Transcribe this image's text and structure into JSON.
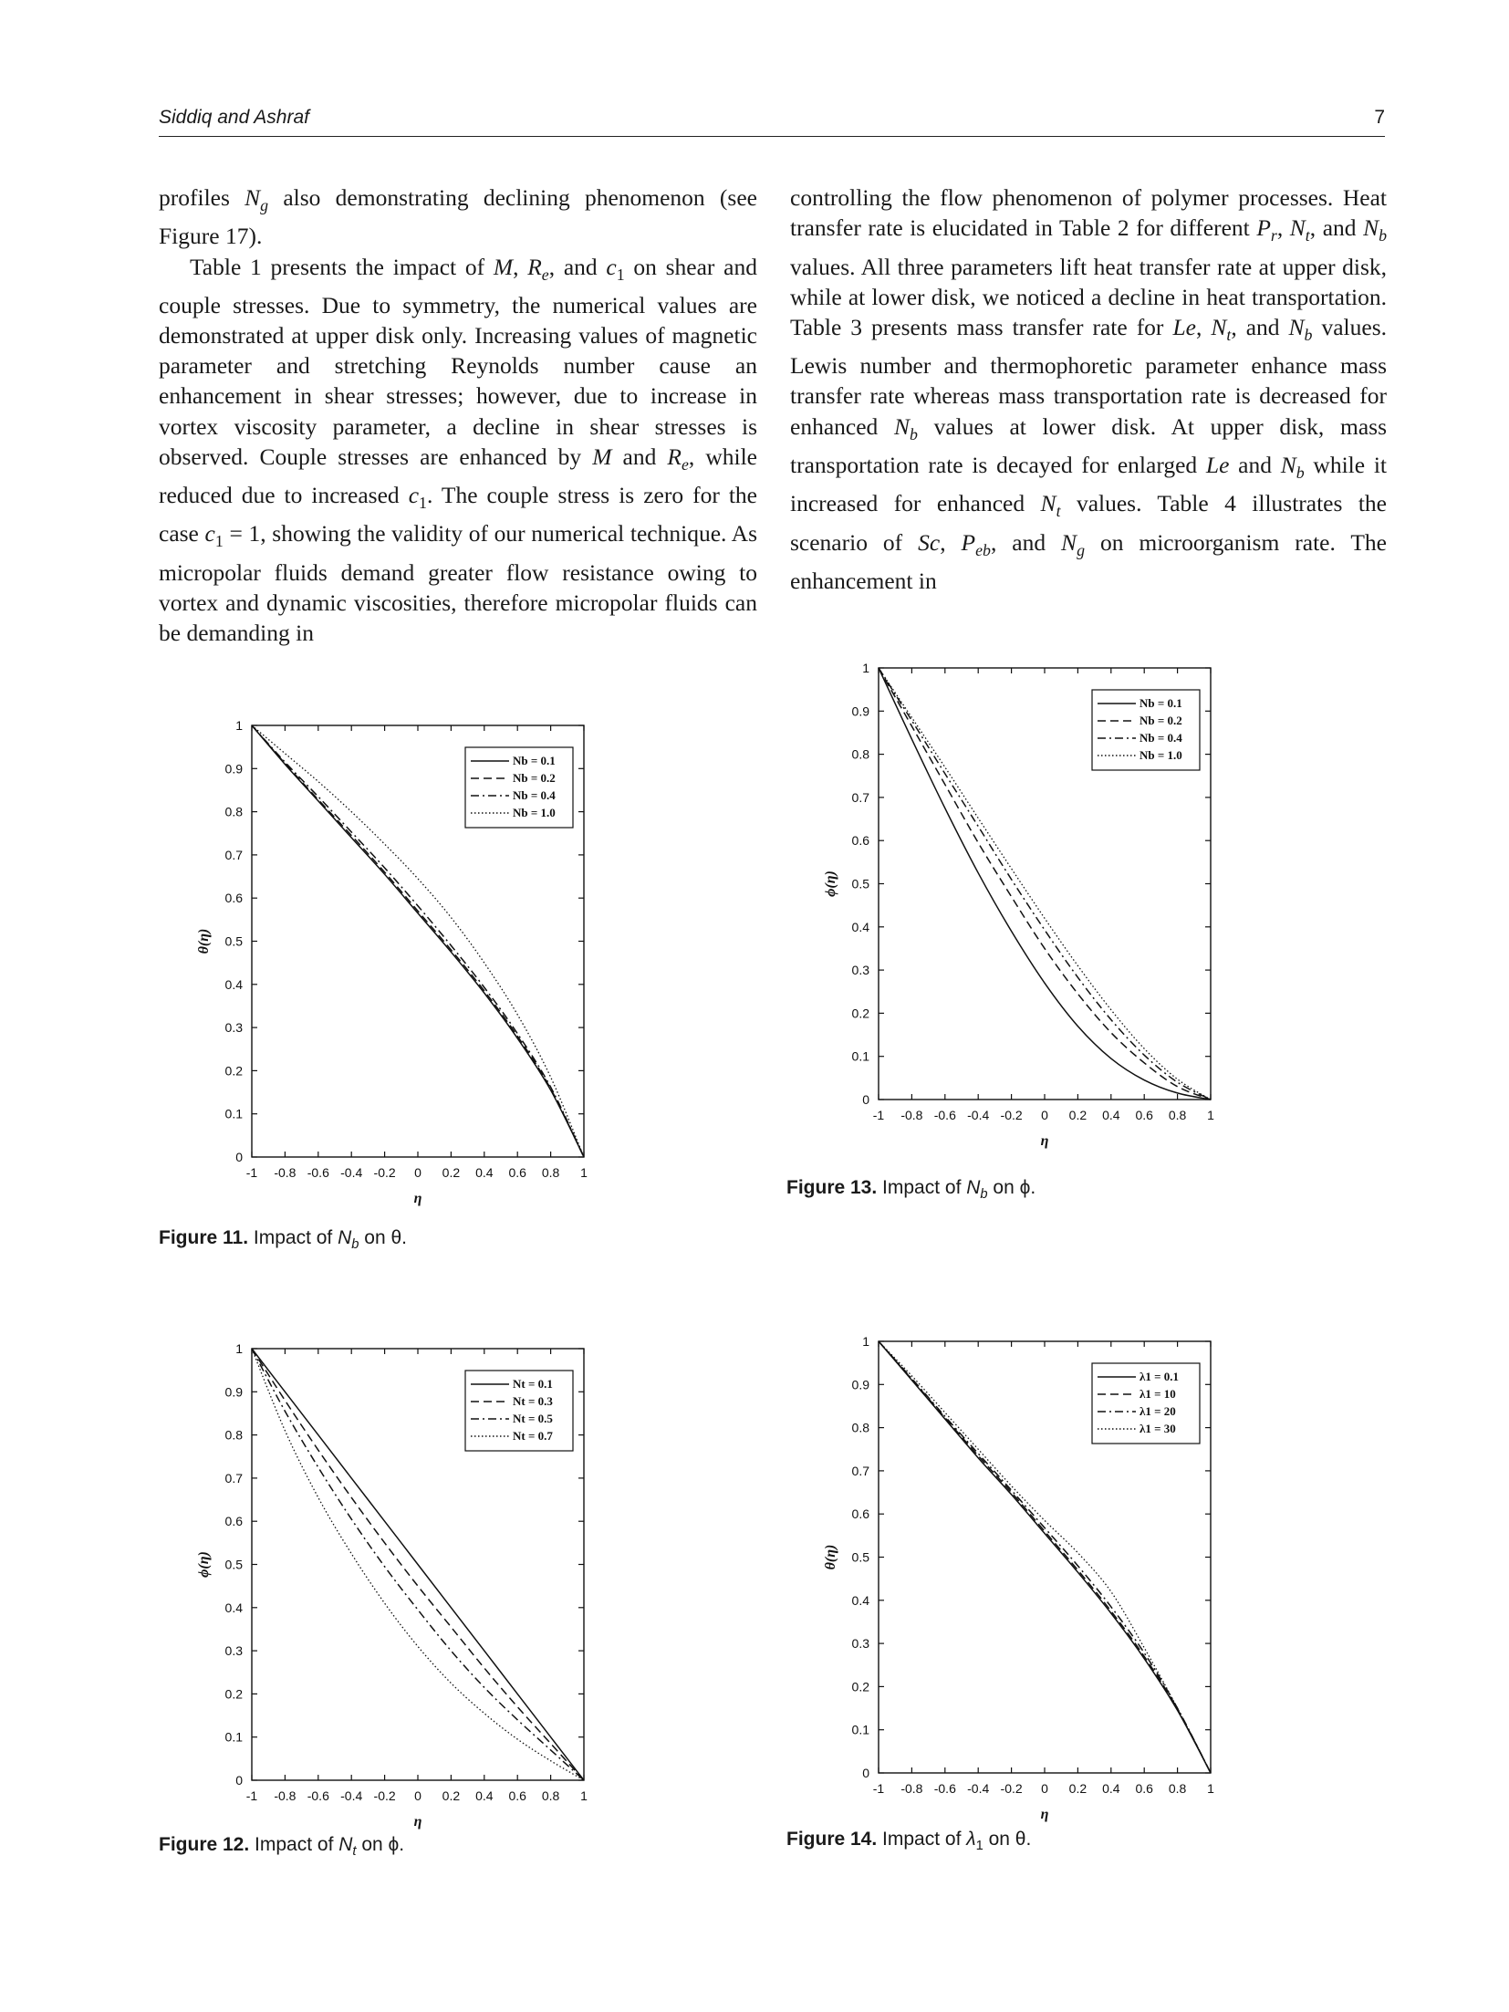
{
  "header": {
    "authors": "Siddiq and Ashraf",
    "page_number": "7"
  },
  "body": {
    "left_column": [
      "profiles N_g also demonstrating declining phenomenon (see Figure 17).",
      "Table 1 presents the impact of M, R_e, and c_1 on shear and couple stresses. Due to symmetry, the numerical values are demonstrated at upper disk only. Increasing values of magnetic parameter and stretching Reynolds number cause an enhancement in shear stresses; however, due to increase in vortex viscosity parameter, a decline in shear stresses is observed. Couple stresses are enhanced by M and R_e, while reduced due to increased c_1. The couple stress is zero for the case c_1 = 1, showing the validity of our numerical technique. As micropolar fluids demand greater flow resistance owing to vortex and dynamic viscosities, therefore micropolar fluids can be demanding in"
    ],
    "right_column": [
      "controlling the flow phenomenon of polymer processes. Heat transfer rate is elucidated in Table 2 for different P_r, N_t, and N_b values. All three parameters lift heat transfer rate at upper disk, while at lower disk, we noticed a decline in heat transportation. Table 3 presents mass transfer rate for Le, N_t, and N_b values. Lewis number and thermophoretic parameter enhance mass transfer rate whereas mass transportation rate is decreased for enhanced N_b values at lower disk. At upper disk, mass transportation rate is decayed for enlarged Le and N_b while it increased for enhanced N_t values. Table 4 illustrates the scenario of Sc, P_eb, and N_g on microorganism rate. The enhancement in"
    ]
  },
  "figures": [
    {
      "id": "fig11",
      "label": "Figure 11.",
      "text": "Impact of N_b on θ."
    },
    {
      "id": "fig13",
      "label": "Figure 13.",
      "text": "Impact of N_b on ϕ."
    },
    {
      "id": "fig12",
      "label": "Figure 12.",
      "text": "Impact of N_t on ϕ."
    },
    {
      "id": "fig14",
      "label": "Figure 14.",
      "text": "Impact of λ_1 on θ."
    }
  ],
  "chart_data": [
    {
      "id": "fig11",
      "type": "line",
      "xlabel": "η",
      "ylabel": "θ(η)",
      "xlim": [
        -1,
        1
      ],
      "ylim": [
        0,
        1
      ],
      "xticks": [
        "-1",
        "-0.8",
        "-0.6",
        "-0.4",
        "-0.2",
        "0",
        "0.2",
        "0.4",
        "0.6",
        "0.8",
        "1"
      ],
      "yticks": [
        "0",
        "0.1",
        "0.2",
        "0.3",
        "0.4",
        "0.5",
        "0.6",
        "0.7",
        "0.8",
        "0.9",
        "1"
      ],
      "legend_position": "top-right",
      "x": [
        -1,
        -0.8,
        -0.6,
        -0.4,
        -0.2,
        0,
        0.2,
        0.4,
        0.6,
        0.8,
        1
      ],
      "series": [
        {
          "name": "Nb = 0.1",
          "style": "solid",
          "values": [
            1.0,
            0.91,
            0.825,
            0.74,
            0.655,
            0.565,
            0.475,
            0.38,
            0.275,
            0.155,
            0.0
          ]
        },
        {
          "name": "Nb = 0.2",
          "style": "dashed",
          "values": [
            1.0,
            0.912,
            0.828,
            0.745,
            0.66,
            0.57,
            0.48,
            0.385,
            0.28,
            0.158,
            0.0
          ]
        },
        {
          "name": "Nb = 0.4",
          "style": "dashdot",
          "values": [
            1.0,
            0.915,
            0.835,
            0.753,
            0.67,
            0.582,
            0.49,
            0.393,
            0.286,
            0.162,
            0.0
          ]
        },
        {
          "name": "Nb = 1.0",
          "style": "dotted",
          "values": [
            1.0,
            0.935,
            0.87,
            0.8,
            0.725,
            0.645,
            0.555,
            0.45,
            0.33,
            0.185,
            0.0
          ]
        }
      ]
    },
    {
      "id": "fig13",
      "type": "line",
      "xlabel": "η",
      "ylabel": "ϕ(η)",
      "xlim": [
        -1,
        1
      ],
      "ylim": [
        0,
        1
      ],
      "xticks": [
        "-1",
        "-0.8",
        "-0.6",
        "-0.4",
        "-0.2",
        "0",
        "0.2",
        "0.4",
        "0.6",
        "0.8",
        "1"
      ],
      "yticks": [
        "0",
        "0.1",
        "0.2",
        "0.3",
        "0.4",
        "0.5",
        "0.6",
        "0.7",
        "0.8",
        "0.9",
        "1"
      ],
      "legend_position": "top-right",
      "x": [
        -1,
        -0.8,
        -0.6,
        -0.4,
        -0.2,
        0,
        0.2,
        0.4,
        0.6,
        0.8,
        1
      ],
      "series": [
        {
          "name": "Nb = 0.1",
          "style": "solid",
          "values": [
            1.0,
            0.835,
            0.675,
            0.525,
            0.39,
            0.27,
            0.17,
            0.095,
            0.045,
            0.015,
            0.0
          ]
        },
        {
          "name": "Nb = 0.2",
          "style": "dashed",
          "values": [
            1.0,
            0.865,
            0.73,
            0.595,
            0.47,
            0.35,
            0.245,
            0.155,
            0.085,
            0.03,
            0.0
          ]
        },
        {
          "name": "Nb = 0.4",
          "style": "dashdot",
          "values": [
            1.0,
            0.878,
            0.755,
            0.633,
            0.51,
            0.393,
            0.283,
            0.185,
            0.103,
            0.04,
            0.0
          ]
        },
        {
          "name": "Nb = 1.0",
          "style": "dotted",
          "values": [
            1.0,
            0.885,
            0.77,
            0.652,
            0.535,
            0.42,
            0.31,
            0.208,
            0.118,
            0.047,
            0.0
          ]
        }
      ]
    },
    {
      "id": "fig12",
      "type": "line",
      "xlabel": "η",
      "ylabel": "ϕ(η)",
      "xlim": [
        -1,
        1
      ],
      "ylim": [
        0,
        1
      ],
      "xticks": [
        "-1",
        "-0.8",
        "-0.6",
        "-0.4",
        "-0.2",
        "0",
        "0.2",
        "0.4",
        "0.6",
        "0.8",
        "1"
      ],
      "yticks": [
        "0",
        "0.1",
        "0.2",
        "0.3",
        "0.4",
        "0.5",
        "0.6",
        "0.7",
        "0.8",
        "0.9",
        "1"
      ],
      "legend_position": "top-right",
      "x": [
        -1,
        -0.8,
        -0.6,
        -0.4,
        -0.2,
        0,
        0.2,
        0.4,
        0.6,
        0.8,
        1
      ],
      "series": [
        {
          "name": "Nt = 0.1",
          "style": "solid",
          "values": [
            1.0,
            0.9,
            0.8,
            0.7,
            0.6,
            0.5,
            0.4,
            0.3,
            0.2,
            0.1,
            0.0
          ]
        },
        {
          "name": "Nt = 0.3",
          "style": "dashed",
          "values": [
            1.0,
            0.88,
            0.765,
            0.655,
            0.55,
            0.45,
            0.355,
            0.26,
            0.17,
            0.085,
            0.0
          ]
        },
        {
          "name": "Nt = 0.5",
          "style": "dashdot",
          "values": [
            1.0,
            0.855,
            0.725,
            0.605,
            0.495,
            0.395,
            0.3,
            0.215,
            0.14,
            0.07,
            0.0
          ]
        },
        {
          "name": "Nt = 0.7",
          "style": "dotted",
          "values": [
            1.0,
            0.81,
            0.655,
            0.525,
            0.41,
            0.31,
            0.225,
            0.155,
            0.095,
            0.045,
            0.0
          ]
        }
      ]
    },
    {
      "id": "fig14",
      "type": "line",
      "xlabel": "η",
      "ylabel": "θ(η)",
      "xlim": [
        -1,
        1
      ],
      "ylim": [
        0,
        1
      ],
      "xticks": [
        "-1",
        "-0.8",
        "-0.6",
        "-0.4",
        "-0.2",
        "0",
        "0.2",
        "0.4",
        "0.6",
        "0.8",
        "1"
      ],
      "yticks": [
        "0",
        "0.1",
        "0.2",
        "0.3",
        "0.4",
        "0.5",
        "0.6",
        "0.7",
        "0.8",
        "0.9",
        "1"
      ],
      "legend_position": "top-right",
      "x": [
        -1,
        -0.8,
        -0.6,
        -0.4,
        -0.2,
        0,
        0.2,
        0.4,
        0.6,
        0.8,
        1
      ],
      "series": [
        {
          "name": "λ1 = 0.1",
          "style": "solid",
          "values": [
            1.0,
            0.91,
            0.82,
            0.73,
            0.645,
            0.555,
            0.465,
            0.37,
            0.265,
            0.145,
            0.0
          ]
        },
        {
          "name": "λ1 = 10",
          "style": "dashed",
          "values": [
            1.0,
            0.912,
            0.823,
            0.735,
            0.65,
            0.56,
            0.47,
            0.375,
            0.27,
            0.148,
            0.0
          ]
        },
        {
          "name": "λ1 = 20",
          "style": "dashdot",
          "values": [
            1.0,
            0.914,
            0.826,
            0.74,
            0.655,
            0.568,
            0.48,
            0.385,
            0.278,
            0.15,
            0.0
          ]
        },
        {
          "name": "λ1 = 30",
          "style": "dotted",
          "values": [
            1.0,
            0.92,
            0.835,
            0.75,
            0.665,
            0.585,
            0.51,
            0.42,
            0.29,
            0.15,
            0.0
          ]
        }
      ]
    }
  ]
}
